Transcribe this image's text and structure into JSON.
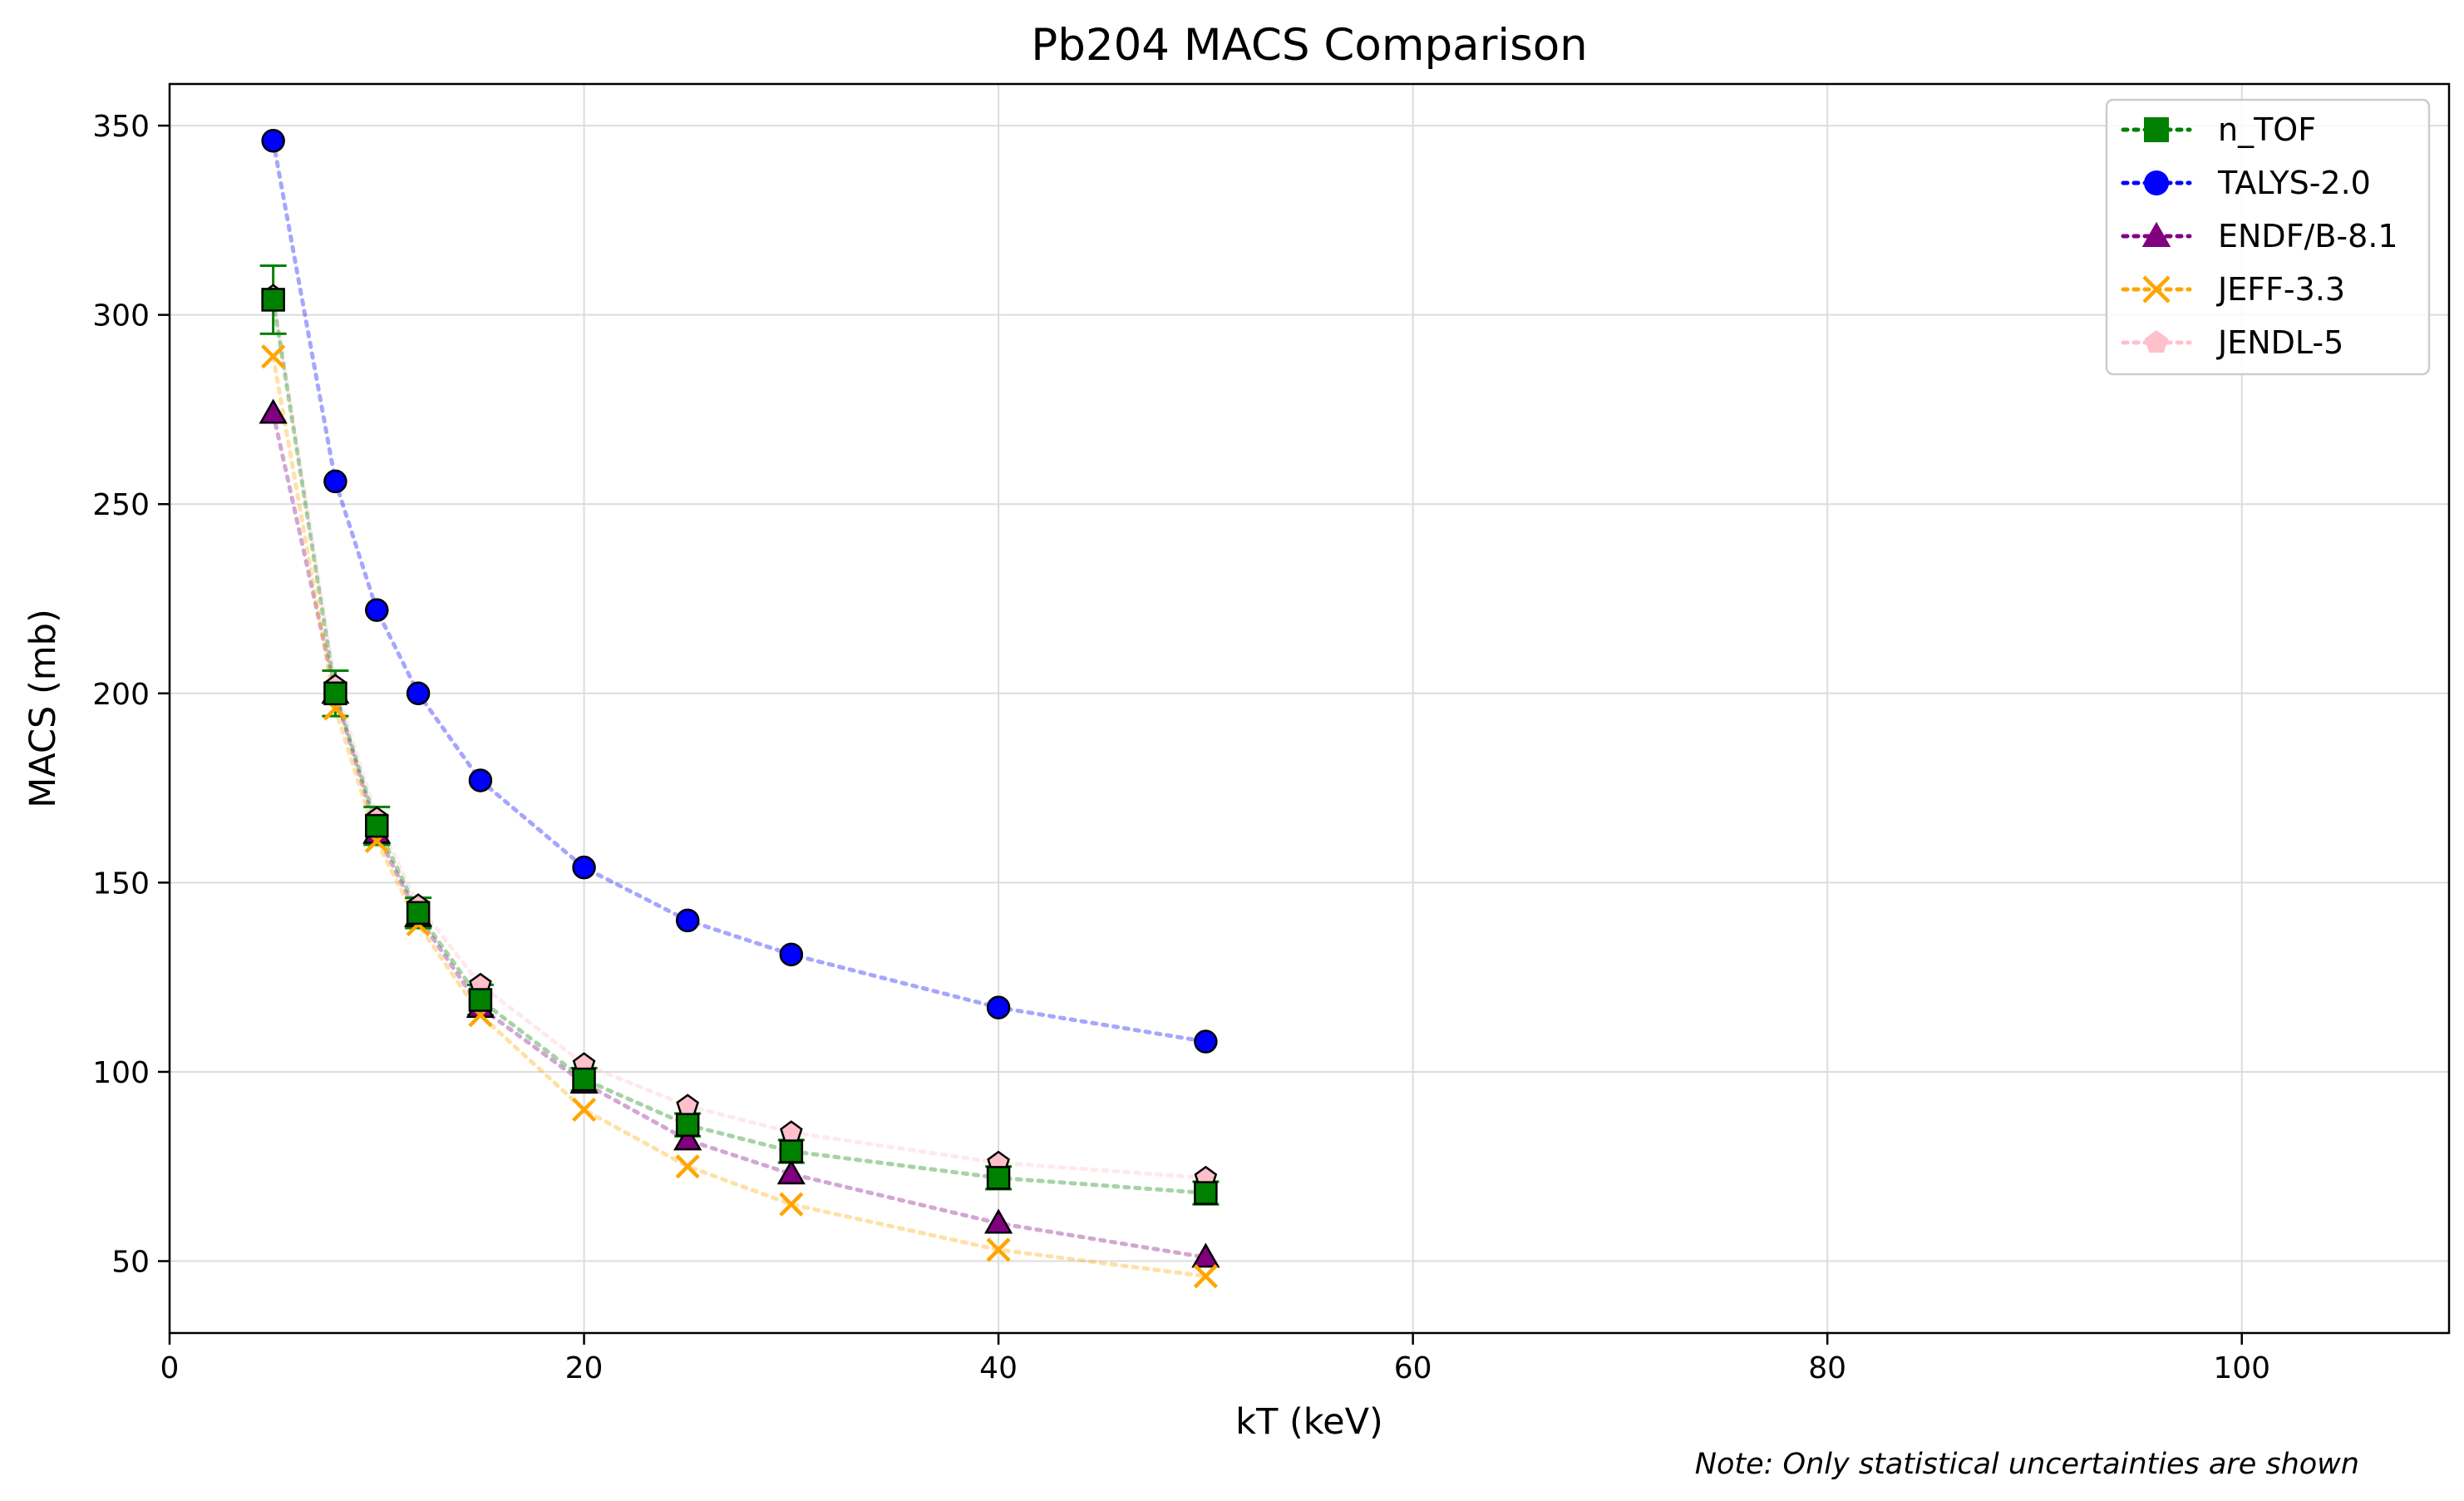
{
  "chart_data": {
    "type": "scatter",
    "title": "Pb204 MACS Comparison",
    "xlabel": "kT (keV)",
    "ylabel": "MACS (mb)",
    "xlim": [
      0,
      110
    ],
    "ylim": [
      31,
      361
    ],
    "xticks": [
      0,
      20,
      40,
      60,
      80,
      100
    ],
    "yticks": [
      50,
      100,
      150,
      200,
      250,
      300,
      350
    ],
    "grid": true,
    "legend_position": "top-right",
    "note": "Note: Only statistical uncertainties are shown",
    "series": [
      {
        "name": "n_TOF",
        "color": "#008000",
        "marker": "square",
        "linestyle": "dotted",
        "x": [
          5,
          8,
          10,
          12,
          15,
          20,
          25,
          30,
          40,
          50
        ],
        "y": [
          304,
          200,
          165,
          142,
          119,
          98,
          86,
          79,
          72,
          68
        ],
        "yerr": [
          9,
          6,
          5,
          4,
          4,
          3,
          3,
          3,
          3,
          3
        ]
      },
      {
        "name": "TALYS-2.0",
        "color": "#0000ff",
        "marker": "circle",
        "linestyle": "dotted",
        "x": [
          5,
          8,
          10,
          12,
          15,
          20,
          25,
          30,
          40,
          50
        ],
        "y": [
          346,
          256,
          222,
          200,
          177,
          154,
          140,
          131,
          117,
          108
        ]
      },
      {
        "name": "ENDF/B-8.1",
        "color": "#800080",
        "marker": "triangle",
        "linestyle": "dotted",
        "x": [
          5,
          8,
          10,
          12,
          15,
          20,
          25,
          30,
          40,
          50
        ],
        "y": [
          274,
          200,
          163,
          141,
          117,
          97,
          82,
          73,
          60,
          51
        ]
      },
      {
        "name": "JEFF-3.3",
        "color": "#ffa500",
        "marker": "x",
        "linestyle": "dotted",
        "x": [
          5,
          8,
          10,
          12,
          15,
          20,
          25,
          30,
          40,
          50
        ],
        "y": [
          289,
          196,
          161,
          139,
          115,
          90,
          75,
          65,
          53,
          46
        ]
      },
      {
        "name": "JENDL-5",
        "color": "#ffc0cb",
        "marker": "pentagon",
        "linestyle": "dotted",
        "x": [
          5,
          8,
          10,
          12,
          15,
          20,
          25,
          30,
          40,
          50
        ],
        "y": [
          305,
          202,
          167,
          144,
          123,
          102,
          91,
          84,
          76,
          72
        ]
      }
    ]
  }
}
